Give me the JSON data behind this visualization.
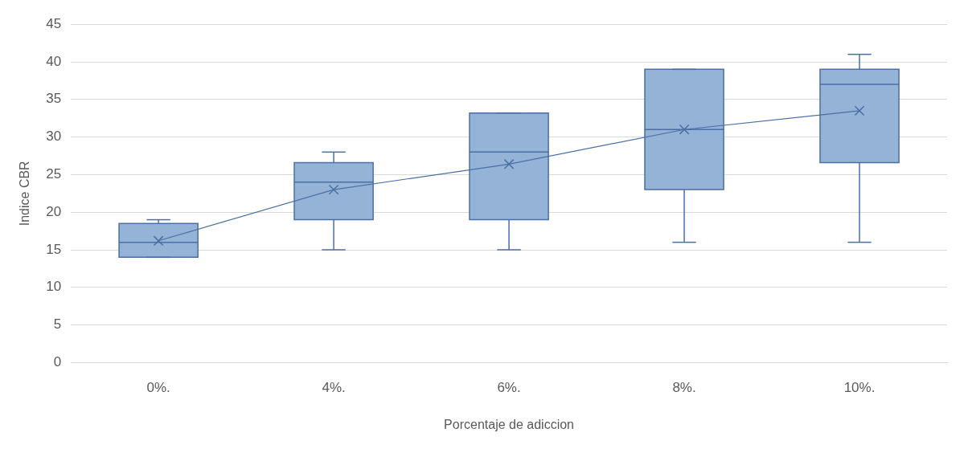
{
  "chart_data": {
    "type": "box",
    "xlabel": "Porcentaje de adiccion",
    "ylabel": "Indice CBR",
    "categories": [
      "0%.",
      "4%.",
      "6%.",
      "8%.",
      "10%."
    ],
    "color": "#95b3d7",
    "boxes": [
      {
        "low": 14,
        "q1": 14,
        "median": 16,
        "q3": 18.5,
        "high": 19
      },
      {
        "low": 15,
        "q1": 19,
        "median": 24,
        "q3": 26.6,
        "high": 28
      },
      {
        "low": 15,
        "q1": 19,
        "median": 28,
        "q3": 33.2,
        "high": 33.2
      },
      {
        "low": 16,
        "q1": 23,
        "median": 31,
        "q3": 39,
        "high": 39
      },
      {
        "low": 16,
        "q1": 26.6,
        "median": 37,
        "q3": 39,
        "high": 41
      }
    ],
    "series": [
      {
        "type": "line",
        "color": "#4a6fa5",
        "values": [
          16.2,
          23,
          26.4,
          31,
          33.5
        ]
      }
    ],
    "marker": "cross",
    "ylim": [
      0,
      45
    ],
    "yticks": [
      0,
      5,
      10,
      15,
      20,
      25,
      30,
      35,
      40,
      45
    ],
    "grid": "y",
    "legend": false
  }
}
